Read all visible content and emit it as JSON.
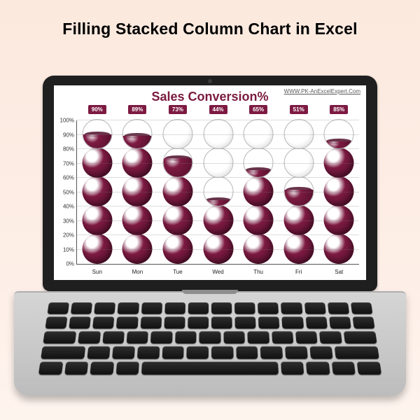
{
  "page": {
    "title": "Filling Stacked Column Chart in Excel",
    "bg_gradient_top": "#fce9de",
    "bg_gradient_bottom": "#fef4ee"
  },
  "chart": {
    "type": "stacked-sphere-column",
    "title": "Sales Conversion%",
    "title_color": "#7a1a3e",
    "title_fontsize": 18,
    "site_url": "WWW.PK-AnExcelExpert.Com",
    "url_color": "#5a5a5a",
    "fill_color": "#7d1a42",
    "fill_color_dark": "#4d0e29",
    "empty_border": "#b7b7b7",
    "label_bg": "#7d1a42",
    "grid_color": "rgba(120,120,120,0.25)",
    "axis_color": "#555555",
    "spheres_per_column": 5,
    "sphere_unit_pct": 20,
    "y_axis": {
      "min": 0,
      "max": 100,
      "step": 10,
      "suffix": "%"
    },
    "categories": [
      "Sun",
      "Mon",
      "Tue",
      "Wed",
      "Thu",
      "Fri",
      "Sat"
    ],
    "values_pct": [
      90,
      89,
      73,
      44,
      65,
      51,
      85
    ],
    "value_label_suffix": "%"
  },
  "laptop": {
    "bezel_color": "#1f1f1f",
    "deck_color": "#cfcfcf",
    "key_color": "#1a1a1a",
    "keyboard_rows": [
      14,
      14,
      13,
      12,
      9
    ]
  }
}
